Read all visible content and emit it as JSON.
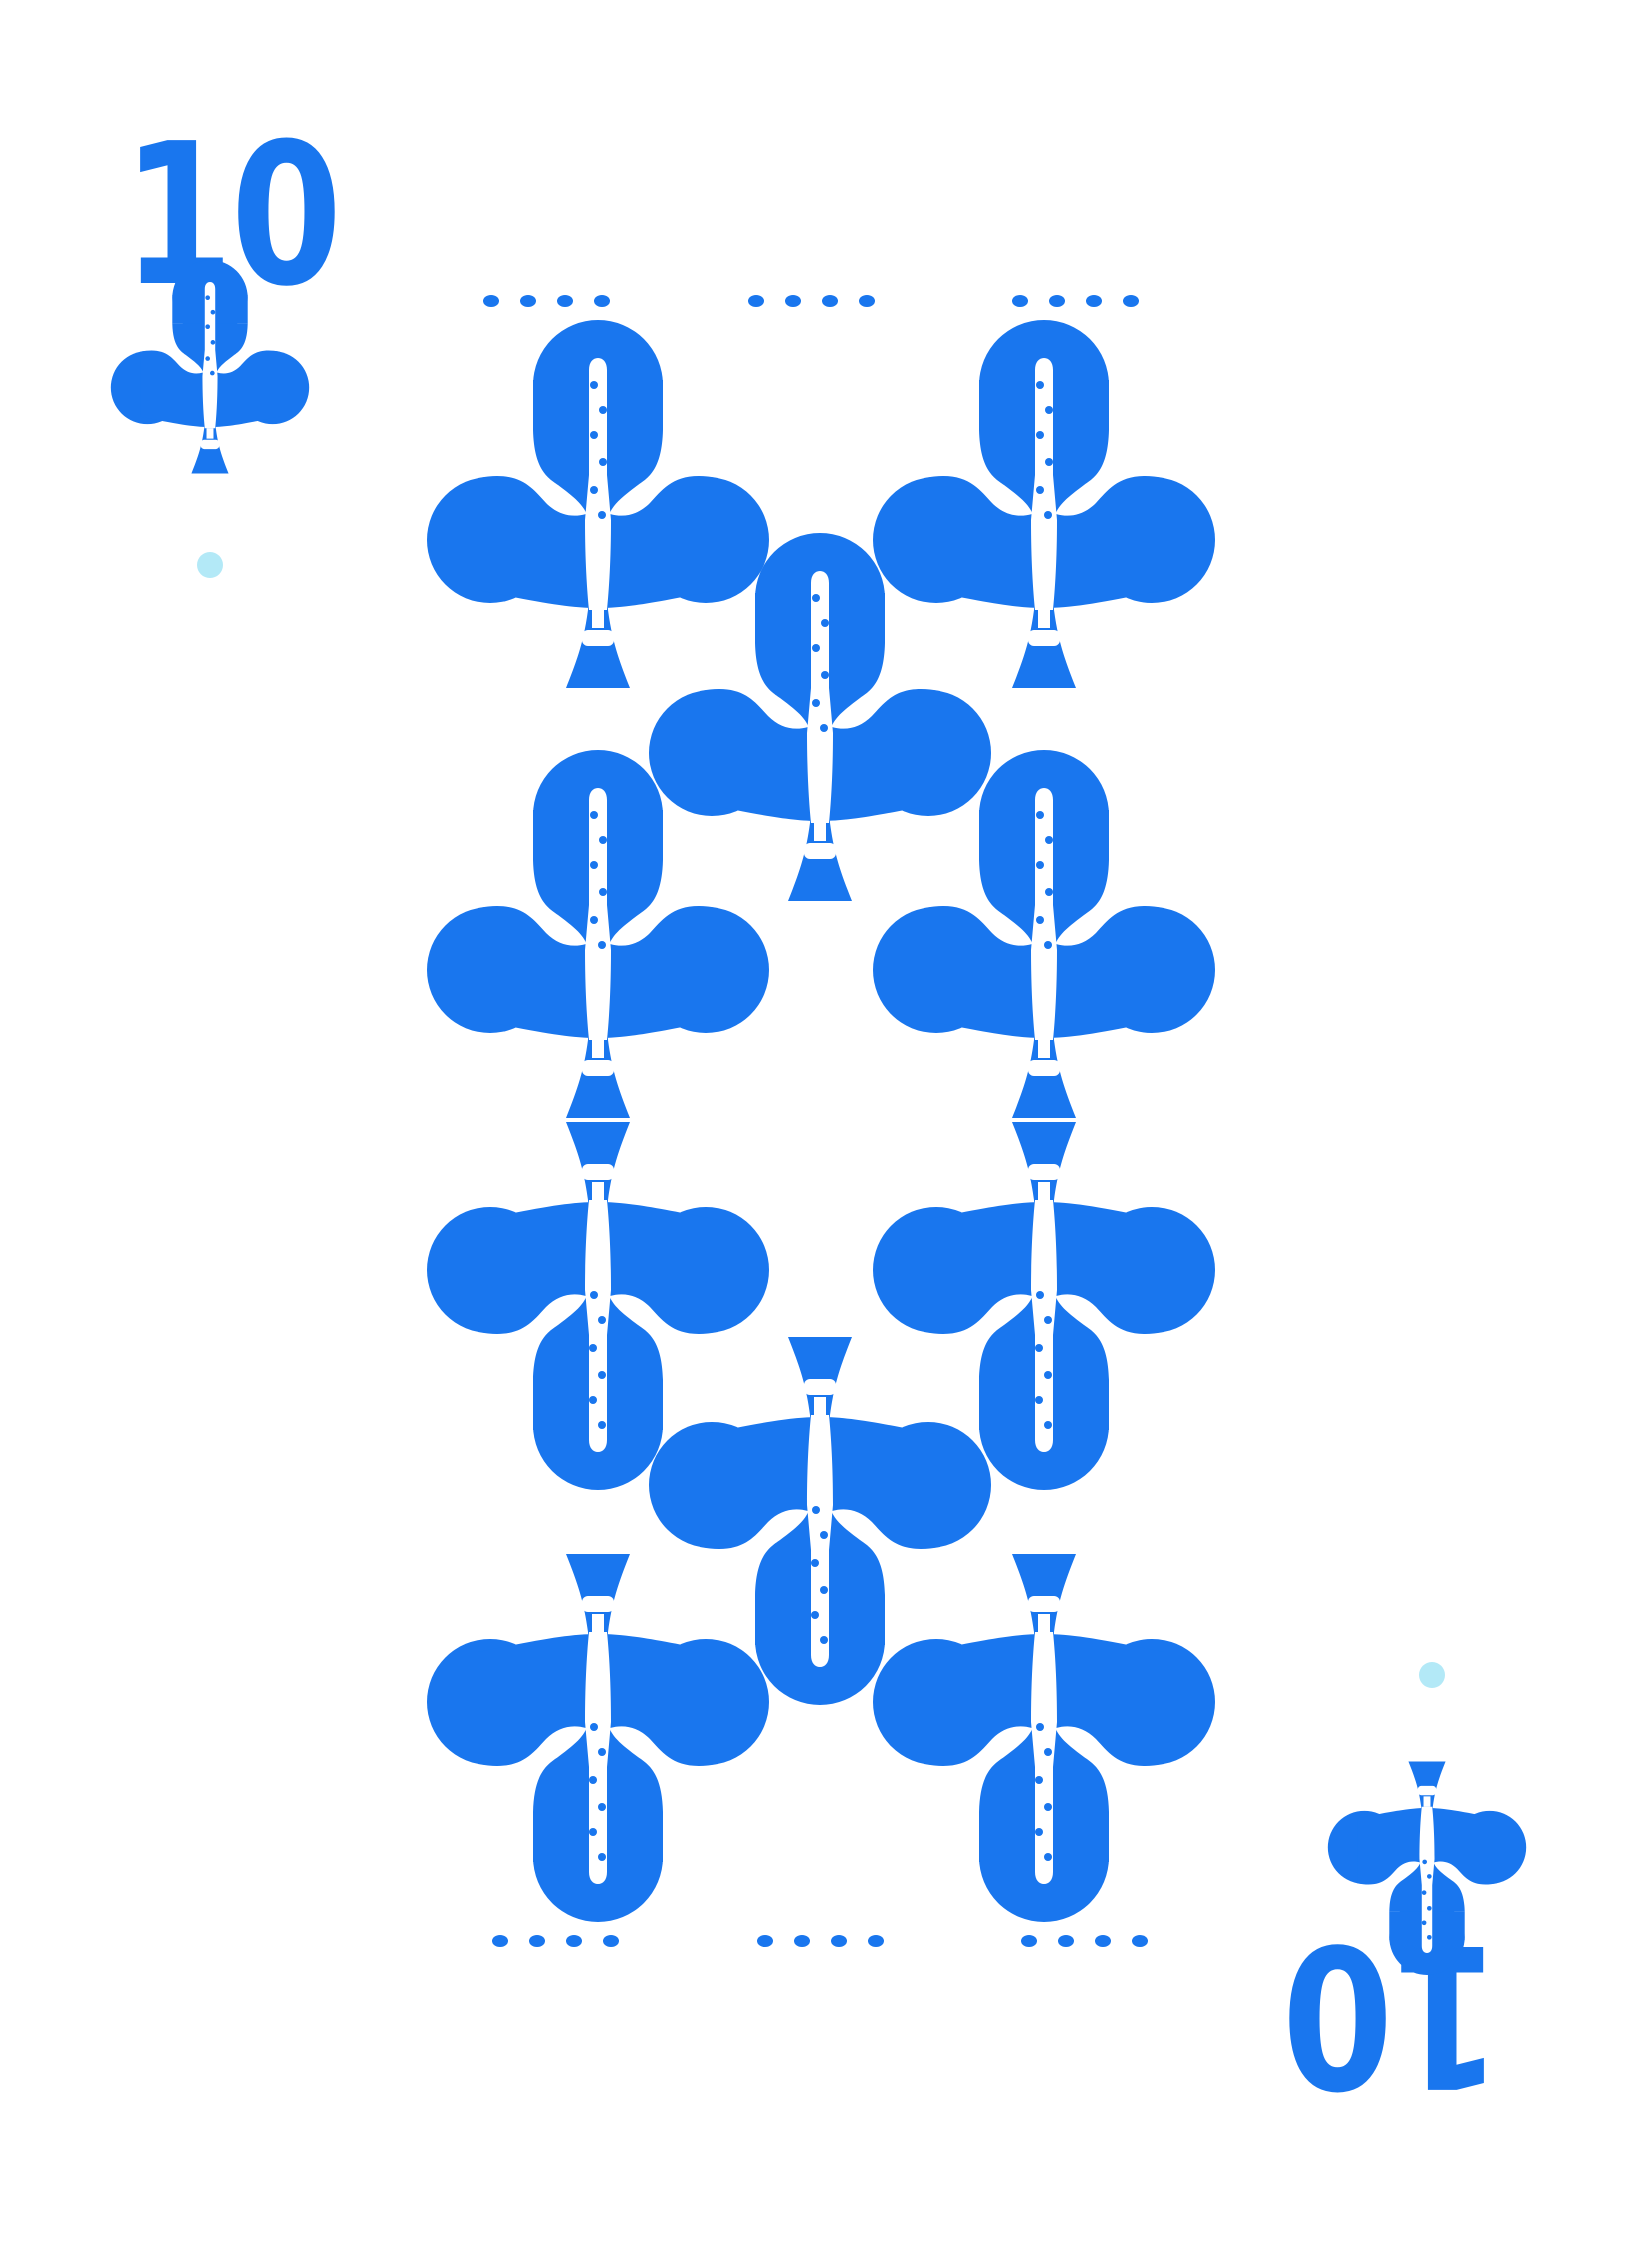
{
  "card": {
    "rank": "10",
    "suit": "clubs",
    "suit_icon": "recorder-club-icon",
    "colors": {
      "ink": "#1976EE",
      "accent_dot": "#B3E9F7",
      "background": "#FFFFFF"
    }
  }
}
